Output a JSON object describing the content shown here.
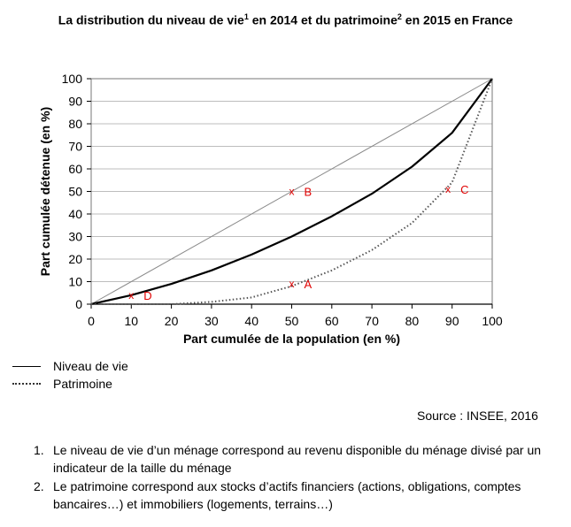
{
  "header": {
    "title_part1": "La distribution du niveau de vie",
    "title_sup1": "1",
    "title_part2": " en 2014 et du patrimoine",
    "title_sup2": "2",
    "title_part3": " en 2015 en France"
  },
  "legend": {
    "solid_label": "Niveau de vie",
    "dotted_label": "Patrimoine",
    "dotted_marker": "………"
  },
  "source": "Source : INSEE, 2016",
  "notes": [
    {
      "num": "1.",
      "text": "Le niveau de vie d’un ménage correspond au revenu disponible du ménage divisé par un indicateur de la taille du ménage"
    },
    {
      "num": "2.",
      "text": "Le patrimoine correspond aux stocks d’actifs financiers (actions, obligations, comptes bancaires…) et immobiliers (logements, terrains…)"
    }
  ],
  "chart_data": {
    "type": "line",
    "xlabel": "Part cumulée de la population (en %)",
    "ylabel": "Part cumulée détenue (en %)",
    "xlim": [
      0,
      100
    ],
    "ylim": [
      0,
      100
    ],
    "xticks": [
      0,
      10,
      20,
      30,
      40,
      50,
      60,
      70,
      80,
      90,
      100
    ],
    "yticks": [
      0,
      10,
      20,
      30,
      40,
      50,
      60,
      70,
      80,
      90,
      100
    ],
    "grid": true,
    "colors": {
      "equality": "#8a8a8a",
      "niveau": "#000000",
      "patrimoine": "#555555",
      "grid": "#bdbdbd",
      "markers": "#e00000"
    },
    "series": [
      {
        "name": "",
        "style": "thin",
        "x": [
          0,
          100
        ],
        "y": [
          0,
          100
        ]
      },
      {
        "name": "Niveau de vie",
        "style": "solid",
        "x": [
          0,
          10,
          20,
          30,
          40,
          50,
          60,
          70,
          80,
          90,
          100
        ],
        "y": [
          0,
          4,
          9,
          15,
          22,
          30,
          39,
          49,
          61,
          76,
          100
        ]
      },
      {
        "name": "Patrimoine",
        "style": "dotted",
        "x": [
          0,
          10,
          20,
          30,
          40,
          50,
          60,
          70,
          80,
          90,
          100
        ],
        "y": [
          0,
          0,
          0,
          1,
          3,
          8,
          15,
          24,
          36,
          54,
          100
        ]
      }
    ],
    "markers": [
      {
        "label": "A",
        "x": 50,
        "y": 9
      },
      {
        "label": "B",
        "x": 50,
        "y": 50
      },
      {
        "label": "C",
        "x": 89,
        "y": 51
      },
      {
        "label": "D",
        "x": 10,
        "y": 4
      }
    ]
  }
}
